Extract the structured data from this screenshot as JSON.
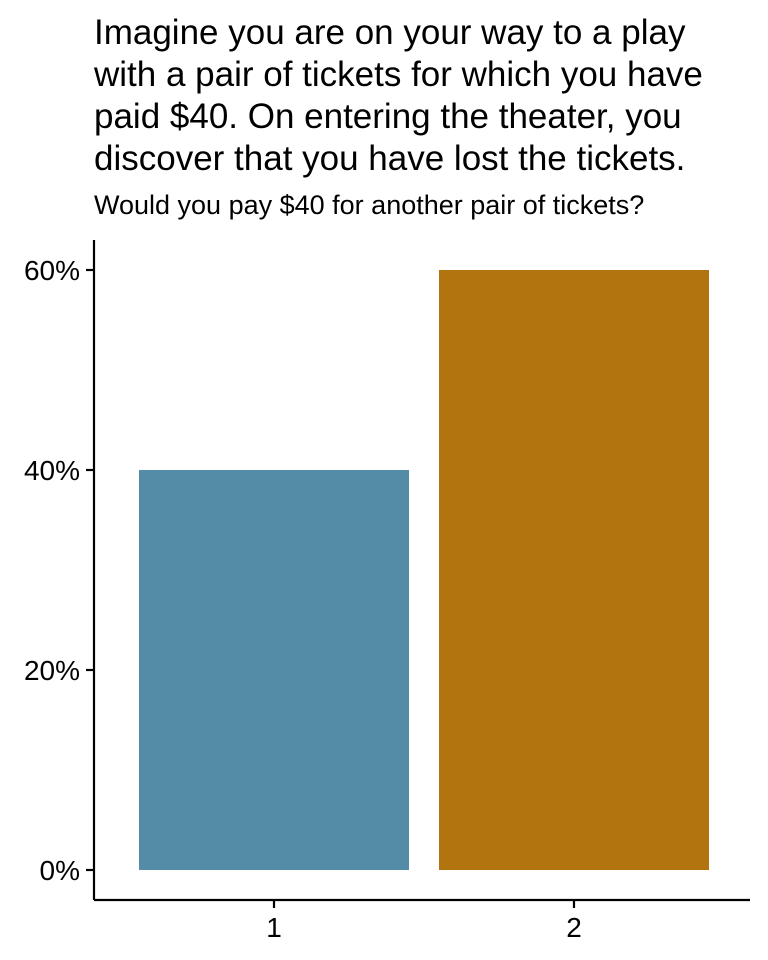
{
  "chart_data": {
    "type": "bar",
    "title": "Imagine you are on your way to a play\nwith a pair of tickets for which you have\npaid $40. On entering the theater, you\ndiscover that you have lost the tickets.",
    "subtitle": "Would you pay $40 for another pair of tickets?",
    "xlabel": "",
    "ylabel": "",
    "categories": [
      "1",
      "2"
    ],
    "values": [
      0.4,
      0.6
    ],
    "colors": [
      "#548ba6",
      "#b2740f"
    ],
    "ylim": [
      0,
      0.63
    ],
    "yticks": [
      0,
      0.2,
      0.4,
      0.6
    ],
    "ytick_labels": [
      "0%",
      "20%",
      "40%",
      "60%"
    ],
    "grid": false,
    "legend": "none"
  }
}
